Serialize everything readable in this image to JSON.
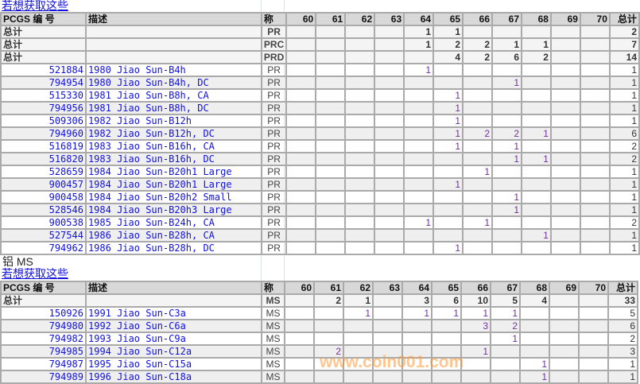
{
  "columns": {
    "id": "PCGS 编 号",
    "desc": "描述",
    "grade": "称",
    "grades": [
      "60",
      "61",
      "62",
      "63",
      "64",
      "65",
      "66",
      "67",
      "68",
      "69",
      "70"
    ],
    "total": "总计"
  },
  "sections": [
    {
      "link": "若想获取这些",
      "totals": [
        {
          "label": "总计",
          "grade": "PR",
          "vals": [
            "",
            "",
            "",
            "",
            "1",
            "1",
            "",
            "",
            "",
            "",
            ""
          ],
          "total": "2"
        },
        {
          "label": "总计",
          "grade": "PRC",
          "vals": [
            "",
            "",
            "",
            "",
            "1",
            "2",
            "2",
            "1",
            "1",
            "",
            ""
          ],
          "total": "7"
        },
        {
          "label": "总计",
          "grade": "PRD",
          "vals": [
            "",
            "",
            "",
            "",
            "",
            "4",
            "2",
            "6",
            "2",
            "",
            ""
          ],
          "total": "14"
        }
      ],
      "rows": [
        {
          "id": "521884",
          "desc": "1980 Jiao Sun-B4h",
          "grade": "PR",
          "vals": [
            "",
            "",
            "",
            "",
            "1",
            "",
            "",
            "",
            "",
            "",
            ""
          ],
          "total": "1"
        },
        {
          "id": "794954",
          "desc": "1980 Jiao Sun-B4h, DC",
          "grade": "PR",
          "vals": [
            "",
            "",
            "",
            "",
            "",
            "",
            "",
            "1",
            "",
            "",
            ""
          ],
          "total": "1"
        },
        {
          "id": "515330",
          "desc": "1981 Jiao Sun-B8h, CA",
          "grade": "PR",
          "vals": [
            "",
            "",
            "",
            "",
            "",
            "1",
            "",
            "",
            "",
            "",
            ""
          ],
          "total": "1"
        },
        {
          "id": "794956",
          "desc": "1981 Jiao Sun-B8h, DC",
          "grade": "PR",
          "vals": [
            "",
            "",
            "",
            "",
            "",
            "1",
            "",
            "",
            "",
            "",
            ""
          ],
          "total": "1"
        },
        {
          "id": "509306",
          "desc": "1982 Jiao Sun-B12h",
          "grade": "PR",
          "vals": [
            "",
            "",
            "",
            "",
            "",
            "1",
            "",
            "",
            "",
            "",
            ""
          ],
          "total": "1"
        },
        {
          "id": "794960",
          "desc": "1982 Jiao Sun-B12h, DC",
          "grade": "PR",
          "vals": [
            "",
            "",
            "",
            "",
            "",
            "1",
            "2",
            "2",
            "1",
            "",
            ""
          ],
          "total": "6"
        },
        {
          "id": "516819",
          "desc": "1983 Jiao Sun-B16h, CA",
          "grade": "PR",
          "vals": [
            "",
            "",
            "",
            "",
            "",
            "1",
            "",
            "1",
            "",
            "",
            ""
          ],
          "total": "2"
        },
        {
          "id": "516820",
          "desc": "1983 Jiao Sun-B16h, DC",
          "grade": "PR",
          "vals": [
            "",
            "",
            "",
            "",
            "",
            "",
            "",
            "1",
            "1",
            "",
            ""
          ],
          "total": "2"
        },
        {
          "id": "528659",
          "desc": "1984 Jiao Sun-B20h1 Large",
          "grade": "PR",
          "vals": [
            "",
            "",
            "",
            "",
            "",
            "",
            "1",
            "",
            "",
            "",
            ""
          ],
          "total": "1"
        },
        {
          "id": "900457",
          "desc": "1984 Jiao Sun-B20h1 Large",
          "grade": "PR",
          "vals": [
            "",
            "",
            "",
            "",
            "",
            "1",
            "",
            "",
            "",
            "",
            ""
          ],
          "total": "1"
        },
        {
          "id": "900458",
          "desc": "1984 Jiao Sun-B20h2 Small",
          "grade": "PR",
          "vals": [
            "",
            "",
            "",
            "",
            "",
            "",
            "",
            "1",
            "",
            "",
            ""
          ],
          "total": "1"
        },
        {
          "id": "528546",
          "desc": "1984 Jiao Sun-B20h3 Large",
          "grade": "PR",
          "vals": [
            "",
            "",
            "",
            "",
            "",
            "",
            "",
            "1",
            "",
            "",
            ""
          ],
          "total": "1"
        },
        {
          "id": "900538",
          "desc": "1985 Jiao Sun-B24h, CA",
          "grade": "PR",
          "vals": [
            "",
            "",
            "",
            "",
            "1",
            "",
            "1",
            "",
            "",
            "",
            ""
          ],
          "total": "2"
        },
        {
          "id": "527544",
          "desc": "1986 Jiao Sun-B28h, CA",
          "grade": "PR",
          "vals": [
            "",
            "",
            "",
            "",
            "",
            "",
            "",
            "",
            "1",
            "",
            ""
          ],
          "total": "1"
        },
        {
          "id": "794962",
          "desc": "1986 Jiao Sun-B28h, DC",
          "grade": "PR",
          "vals": [
            "",
            "",
            "",
            "",
            "",
            "1",
            "",
            "",
            "",
            "",
            ""
          ],
          "total": "1"
        }
      ]
    },
    {
      "title": "铝 MS",
      "link": "若想获取这些",
      "totals": [
        {
          "label": "总计",
          "grade": "MS",
          "vals": [
            "",
            "2",
            "1",
            "",
            "3",
            "6",
            "10",
            "5",
            "4",
            "",
            ""
          ],
          "total": "33"
        }
      ],
      "rows": [
        {
          "id": "150926",
          "desc": "1991 Jiao Sun-C3a",
          "grade": "MS",
          "vals": [
            "",
            "",
            "1",
            "",
            "1",
            "1",
            "1",
            "1",
            "",
            "",
            ""
          ],
          "total": "5"
        },
        {
          "id": "794980",
          "desc": "1992 Jiao Sun-C6a",
          "grade": "MS",
          "vals": [
            "",
            "",
            "",
            "",
            "",
            "",
            "3",
            "2",
            "",
            "",
            ""
          ],
          "total": "6"
        },
        {
          "id": "794982",
          "desc": "1993 Jiao Sun-C9a",
          "grade": "MS",
          "vals": [
            "",
            "",
            "",
            "",
            "",
            "",
            "",
            "1",
            "",
            "",
            ""
          ],
          "total": "2"
        },
        {
          "id": "794985",
          "desc": "1994 Jiao Sun-C12a",
          "grade": "MS",
          "vals": [
            "",
            "2",
            "",
            "",
            "",
            "",
            "1",
            "",
            "",
            "",
            ""
          ],
          "total": "3"
        },
        {
          "id": "794987",
          "desc": "1995 Jiao Sun-C15a",
          "grade": "MS",
          "vals": [
            "",
            "",
            "",
            "",
            "",
            "",
            "",
            "",
            "1",
            "",
            ""
          ],
          "total": "1"
        },
        {
          "id": "794989",
          "desc": "1996 Jiao Sun-C18a",
          "grade": "MS",
          "vals": [
            "",
            "",
            "",
            "",
            "",
            "",
            "",
            "",
            "1",
            "",
            ""
          ],
          "total": "1"
        }
      ]
    }
  ],
  "watermark": "www.coin001.com"
}
